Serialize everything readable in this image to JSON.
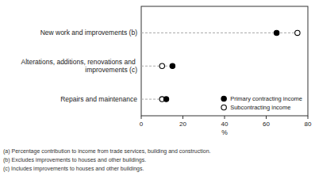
{
  "chart_data": {
    "type": "dot",
    "orientation": "horizontal",
    "categories": [
      "Repairs and maintenance",
      "Alterations, additions, renovations and improvements (c)",
      "New work and improvements (b)"
    ],
    "series": [
      {
        "name": "Primary contracting income",
        "color": "#000000",
        "marker": "circle",
        "values": [
          12,
          15,
          65
        ]
      },
      {
        "name": "Subcontracting income",
        "color": "#000000",
        "marker": "open-circle",
        "values": [
          10,
          10,
          75
        ]
      }
    ],
    "xlabel": "%",
    "xlim": [
      0,
      80
    ],
    "xticks": [
      0,
      20,
      40,
      60,
      80
    ],
    "line_style": "dashed",
    "grid": false,
    "legend": "lower right",
    "annotations": [
      "(a) Percentage contribution to income from trade services, building and construction.",
      "(b) Excludes improvements to houses and other buildings.",
      "(c) Includes improvements to houses and other buildings."
    ]
  }
}
